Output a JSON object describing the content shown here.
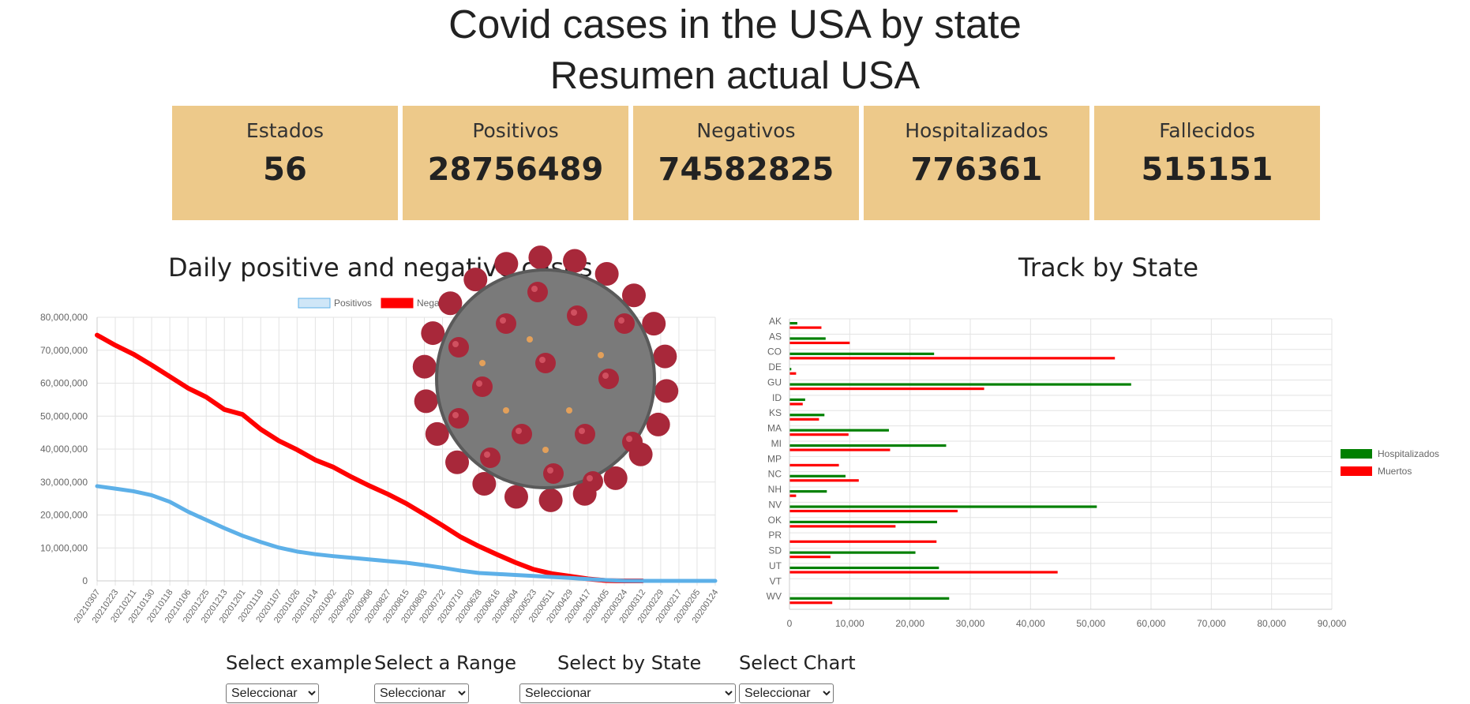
{
  "header": {
    "title": "Covid cases in the USA by state",
    "subtitle": "Resumen actual USA"
  },
  "summary": [
    {
      "label": "Estados",
      "value": "56"
    },
    {
      "label": "Positivos",
      "value": "28756489"
    },
    {
      "label": "Negativos",
      "value": "74582825"
    },
    {
      "label": "Hospitalizados",
      "value": "776361"
    },
    {
      "label": "Fallecidos",
      "value": "515151"
    }
  ],
  "colors": {
    "card": "#EDC98A",
    "positivos": "#5DB0E8",
    "negativos": "#FF0000",
    "hospitalizados": "#008000",
    "muertos": "#FF0000",
    "virus_body": "#7A7A7A",
    "virus_spike": "#A8283A"
  },
  "left_chart": {
    "title": "Daily positive and negative cases"
  },
  "right_chart": {
    "title": "Track by State"
  },
  "controls": [
    {
      "label": "Select example",
      "value": "Seleccionar"
    },
    {
      "label": "Select a Range",
      "value": "Seleccionar"
    },
    {
      "label": "Select by State",
      "value": "Seleccionar"
    },
    {
      "label": "Select Chart",
      "value": "Seleccionar"
    }
  ],
  "chart_data": [
    {
      "type": "line",
      "title": "Daily positive and negative cases",
      "xlabel": "",
      "ylabel": "",
      "ylim": [
        0,
        80000000
      ],
      "yticks": [
        0,
        10000000,
        20000000,
        30000000,
        40000000,
        50000000,
        60000000,
        70000000,
        80000000
      ],
      "yticklabels": [
        "0",
        "10,000,000",
        "20,000,000",
        "30,000,000",
        "40,000,000",
        "50,000,000",
        "60,000,000",
        "70,000,000",
        "80,000,000"
      ],
      "xticklabels": [
        "20210307",
        "20210223",
        "20210211",
        "20210130",
        "20210118",
        "20210106",
        "20201225",
        "20201213",
        "20201201",
        "20201119",
        "20201107",
        "20201026",
        "20201014",
        "20201002",
        "20200920",
        "20200908",
        "20200827",
        "20200815",
        "20200803",
        "20200722",
        "20200710",
        "20200628",
        "20200616",
        "20200604",
        "20200523",
        "20200511",
        "20200429",
        "20200417",
        "20200405",
        "20200324",
        "20200312",
        "20200229",
        "20200217",
        "20200205",
        "20200124"
      ],
      "legend": "top",
      "grid": true,
      "series": [
        {
          "name": "Positivos",
          "color": "#5DB0E8",
          "values": [
            28756489,
            28000000,
            27200000,
            26000000,
            24000000,
            21000000,
            18500000,
            16000000,
            13700000,
            11800000,
            10100000,
            8900000,
            8100000,
            7500000,
            7000000,
            6500000,
            6000000,
            5500000,
            4800000,
            4000000,
            3100000,
            2400000,
            2100000,
            1800000,
            1500000,
            1200000,
            900000,
            550000,
            250000,
            30000,
            0,
            0,
            0,
            0,
            0
          ]
        },
        {
          "name": "Negativos",
          "color": "#FF0000",
          "values": [
            74582825,
            71500000,
            68800000,
            65500000,
            62000000,
            58500000,
            55800000,
            52000000,
            50500000,
            46000000,
            42500000,
            39800000,
            36700000,
            34500000,
            31500000,
            28800000,
            26300000,
            23500000,
            20200000,
            16800000,
            13300000,
            10500000,
            8000000,
            5600000,
            3500000,
            2200000,
            1400000,
            600000,
            100000,
            0,
            0,
            null,
            null,
            null,
            null
          ]
        }
      ]
    },
    {
      "type": "bar",
      "orientation": "horizontal",
      "title": "Track by State",
      "xlim": [
        0,
        90000
      ],
      "xticks": [
        0,
        10000,
        20000,
        30000,
        40000,
        50000,
        60000,
        70000,
        80000,
        90000
      ],
      "xticklabels": [
        "0",
        "10,000",
        "20,000",
        "30,000",
        "40,000",
        "50,000",
        "60,000",
        "70,000",
        "80,000",
        "90,000"
      ],
      "legend": "right",
      "grid": true,
      "categories": [
        "AK",
        "AS",
        "CO",
        "DE",
        "GU",
        "ID",
        "KS",
        "MA",
        "MI",
        "MP",
        "NC",
        "NH",
        "NV",
        "OK",
        "PR",
        "SD",
        "UT",
        "VT",
        "WV"
      ],
      "series": [
        {
          "name": "Hospitalizados",
          "color": "#008000",
          "values": [
            1300,
            6000,
            24000,
            300,
            56700,
            2600,
            5800,
            16500,
            26000,
            0,
            9300,
            6200,
            51000,
            24500,
            0,
            20900,
            24800,
            0,
            26500
          ]
        },
        {
          "name": "Muertos",
          "color": "#FF0000",
          "values": [
            5300,
            10000,
            54000,
            1100,
            32300,
            2200,
            4900,
            9800,
            16700,
            8200,
            11500,
            1100,
            27900,
            17600,
            24400,
            6800,
            44500,
            0,
            7100
          ]
        }
      ]
    }
  ]
}
